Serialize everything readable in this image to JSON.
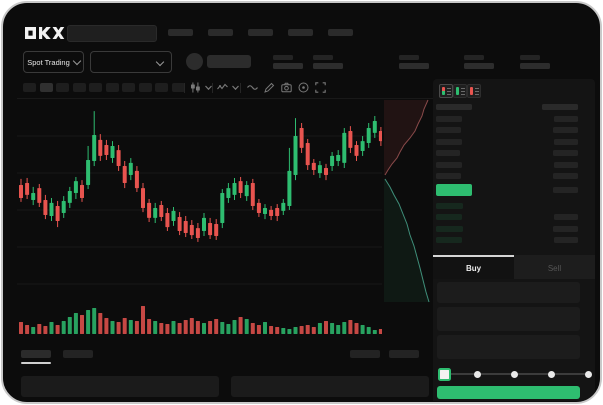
{
  "app": {
    "name": "OKX",
    "logo_text": "OKX"
  },
  "colors": {
    "green": "#2ebd70",
    "red": "#e8544f",
    "bid_tint": "#16281e",
    "grid": "#191919",
    "ask_fill": "rgba(160,62,62,0.14)",
    "ask_line": "#8a4a4a",
    "bid_fill": "rgba(45,150,100,0.10)",
    "bid_line": "#3f8f7a"
  },
  "header": {
    "nav_placeholder_count": 5,
    "search": {
      "placeholder": ""
    }
  },
  "market_bar": {
    "pair_selector_label": "Spot Trading",
    "stat_group_count": 5
  },
  "toolbar": {
    "timeframe_count": 10,
    "active_timeframe_index": 1,
    "icons": [
      "chart-type",
      "chevron-down",
      "indicators",
      "chevron-down",
      "line-style",
      "draw",
      "camera",
      "snapshot",
      "fullscreen"
    ]
  },
  "chart_data": {
    "type": "candlestick_with_volume",
    "note": "prices normalized 0-100 (0 = pane bottom, 100 = pane top); candles as [open, high, low, close]",
    "ylim": [
      0,
      100
    ],
    "grid": "horizontal",
    "candles": [
      [
        55.4,
        58.5,
        46.7,
        48.7
      ],
      [
        56.4,
        59.0,
        48.2,
        50.3
      ],
      [
        47.7,
        54.4,
        45.1,
        51.3
      ],
      [
        53.8,
        55.9,
        44.1,
        46.2
      ],
      [
        47.7,
        50.3,
        37.9,
        40.0
      ],
      [
        39.5,
        48.7,
        36.9,
        46.2
      ],
      [
        44.6,
        47.2,
        33.8,
        36.9
      ],
      [
        41.0,
        49.7,
        38.5,
        47.2
      ],
      [
        46.2,
        54.4,
        43.6,
        52.3
      ],
      [
        51.3,
        59.5,
        48.2,
        57.4
      ],
      [
        55.4,
        57.9,
        46.7,
        48.7
      ],
      [
        55.4,
        75.4,
        53.3,
        68.2
      ],
      [
        67.7,
        93.3,
        65.1,
        81.0
      ],
      [
        78.5,
        81.5,
        67.7,
        70.3
      ],
      [
        75.9,
        78.5,
        68.2,
        70.8
      ],
      [
        69.2,
        77.9,
        66.7,
        75.4
      ],
      [
        73.3,
        75.9,
        62.6,
        65.1
      ],
      [
        65.1,
        67.7,
        53.8,
        56.4
      ],
      [
        60.5,
        69.2,
        57.9,
        66.7
      ],
      [
        62.6,
        65.1,
        51.8,
        53.8
      ],
      [
        53.8,
        56.4,
        41.5,
        43.6
      ],
      [
        46.2,
        48.2,
        36.4,
        38.5
      ],
      [
        38.5,
        46.2,
        35.9,
        43.6
      ],
      [
        45.1,
        47.2,
        36.9,
        39.0
      ],
      [
        41.0,
        43.6,
        31.8,
        33.8
      ],
      [
        36.9,
        44.1,
        34.4,
        42.1
      ],
      [
        39.0,
        41.5,
        29.7,
        31.8
      ],
      [
        36.9,
        39.5,
        28.7,
        30.8
      ],
      [
        34.9,
        37.4,
        27.7,
        29.7
      ],
      [
        33.3,
        35.9,
        26.2,
        28.2
      ],
      [
        31.8,
        41.0,
        29.2,
        38.5
      ],
      [
        35.9,
        38.5,
        27.7,
        29.7
      ],
      [
        35.4,
        37.9,
        27.2,
        29.2
      ],
      [
        35.9,
        53.3,
        33.3,
        51.3
      ],
      [
        48.7,
        56.4,
        46.2,
        53.8
      ],
      [
        50.3,
        59.0,
        47.7,
        56.4
      ],
      [
        57.4,
        59.5,
        48.7,
        51.3
      ],
      [
        49.7,
        57.4,
        47.2,
        55.4
      ],
      [
        56.4,
        58.5,
        42.6,
        44.6
      ],
      [
        46.2,
        48.2,
        39.0,
        41.0
      ],
      [
        40.5,
        45.6,
        37.9,
        43.6
      ],
      [
        42.6,
        44.6,
        37.4,
        39.5
      ],
      [
        43.6,
        45.6,
        36.9,
        39.5
      ],
      [
        42.1,
        48.2,
        40.0,
        46.2
      ],
      [
        44.6,
        74.4,
        42.6,
        62.6
      ],
      [
        60.5,
        89.7,
        57.9,
        80.5
      ],
      [
        84.6,
        87.2,
        71.8,
        74.4
      ],
      [
        76.9,
        79.0,
        63.1,
        65.6
      ],
      [
        66.7,
        68.7,
        60.5,
        63.1
      ],
      [
        61.5,
        67.7,
        59.0,
        65.6
      ],
      [
        64.1,
        66.2,
        57.9,
        60.5
      ],
      [
        65.1,
        72.3,
        62.6,
        70.3
      ],
      [
        67.7,
        73.3,
        65.1,
        70.8
      ],
      [
        66.7,
        84.6,
        64.1,
        82.1
      ],
      [
        83.1,
        85.6,
        71.8,
        74.4
      ],
      [
        75.9,
        77.9,
        67.7,
        70.3
      ],
      [
        72.8,
        80.5,
        70.3,
        77.9
      ],
      [
        76.9,
        87.2,
        74.4,
        84.6
      ],
      [
        82.1,
        90.8,
        79.5,
        88.2
      ],
      [
        83.1,
        85.1,
        75.4,
        77.9
      ]
    ],
    "volume": [
      12,
      9,
      7,
      10,
      8,
      12,
      9,
      13,
      17,
      21,
      19,
      24,
      26,
      21,
      16,
      13,
      12,
      16,
      14,
      13,
      28,
      15,
      13,
      11,
      10,
      13,
      11,
      14,
      16,
      13,
      11,
      13,
      15,
      12,
      10,
      14,
      17,
      15,
      11,
      9,
      12,
      8,
      7,
      6,
      5,
      7,
      8,
      9,
      7,
      11,
      13,
      11,
      9,
      12,
      14,
      11,
      9,
      7,
      4,
      5
    ]
  },
  "depth": {
    "type": "sideways_depth",
    "ask_curve": [
      [
        425,
        2
      ],
      [
        421,
        11
      ],
      [
        419,
        18
      ],
      [
        415,
        26
      ],
      [
        412,
        33
      ],
      [
        407,
        40
      ],
      [
        401,
        47
      ],
      [
        397,
        54
      ],
      [
        394,
        60
      ],
      [
        389,
        66
      ],
      [
        385,
        72
      ],
      [
        382,
        77
      ]
    ],
    "bid_curve": [
      [
        382,
        81
      ],
      [
        387,
        89
      ],
      [
        391,
        97
      ],
      [
        396,
        106
      ],
      [
        400,
        116
      ],
      [
        404,
        126
      ],
      [
        407,
        137
      ],
      [
        411,
        148
      ],
      [
        414,
        159
      ],
      [
        417,
        170
      ],
      [
        420,
        182
      ],
      [
        423,
        194
      ],
      [
        426,
        204
      ]
    ]
  },
  "orderbook": {
    "view_icons": [
      "book-combined-icon",
      "book-bids-icon",
      "book-asks-icon"
    ],
    "header_bar_widths": [
      36,
      36
    ],
    "asks": [
      {
        "price_w": 26,
        "amount_w": 24
      },
      {
        "price_w": 25,
        "amount_w": 25
      },
      {
        "price_w": 26,
        "amount_w": 24
      },
      {
        "price_w": 24,
        "amount_w": 25
      },
      {
        "price_w": 26,
        "amount_w": 24
      },
      {
        "price_w": 25,
        "amount_w": 25
      }
    ],
    "last_price": {
      "badge_w": 36,
      "amount_w": 25,
      "badge_color": "#2ebd70"
    },
    "bids": [
      {
        "price_w": 27,
        "amount_w": 0
      },
      {
        "price_w": 26,
        "amount_w": 24
      },
      {
        "price_w": 27,
        "amount_w": 25
      },
      {
        "price_w": 26,
        "amount_w": 24
      }
    ]
  },
  "trade_form": {
    "tabs": {
      "buy_label": "Buy",
      "sell_label": "Sell",
      "active": "buy"
    },
    "input_count": 3,
    "slider": {
      "stop_count": 5,
      "value_index": 0
    },
    "submit_color": "#2ebd70"
  },
  "bottom_panel": {
    "left_tab_count": 2,
    "right_control_count": 2,
    "active_tab_index": 0,
    "panel_count": 2
  }
}
